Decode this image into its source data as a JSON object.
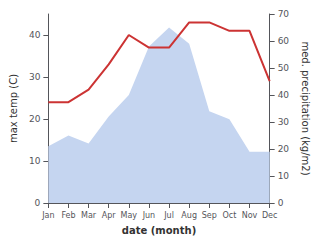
{
  "chart_data": {
    "type": "line",
    "xlabel": "date (month)",
    "ylabel": "max temp (C)",
    "y2label": "med. precipitation (kg/m2)",
    "categories": [
      "Jan",
      "Feb",
      "Mar",
      "Apr",
      "May",
      "Jun",
      "Jul",
      "Aug",
      "Sep",
      "Oct",
      "Nov",
      "Dec"
    ],
    "series": [
      {
        "type": "area",
        "axis": "y2",
        "color": "#c5d5f0",
        "values": [
          21,
          25,
          22,
          32,
          40,
          58,
          65,
          59,
          34,
          31,
          19,
          19
        ]
      },
      {
        "type": "line",
        "color": "#cc3333",
        "values": [
          24,
          24,
          27,
          33,
          40,
          37,
          37,
          43,
          43,
          41,
          41,
          29
        ]
      }
    ],
    "ylim": [
      0,
      45
    ],
    "yticks": [
      0,
      10,
      20,
      30,
      40
    ],
    "y2lim": [
      0,
      70
    ],
    "y2ticks": [
      0,
      10,
      20,
      30,
      40,
      50,
      60,
      70
    ],
    "grid": false
  }
}
